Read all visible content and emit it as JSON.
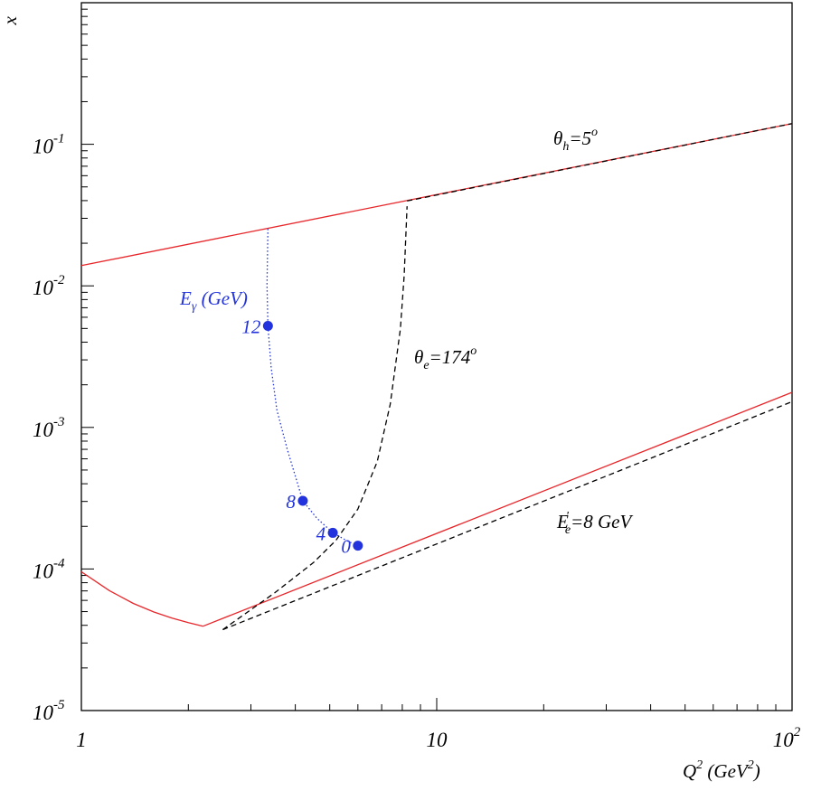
{
  "chart_data": {
    "type": "line",
    "x_scale": "log",
    "y_scale": "log",
    "xlim": [
      1,
      100
    ],
    "ylim": [
      1e-05,
      1
    ],
    "xlabel": {
      "main": "Q",
      "sup": "2",
      "unit_open": " (GeV",
      "unit_sup": "2",
      "unit_close": ")"
    },
    "ylabel": "x",
    "x_ticks": [
      {
        "value": 1,
        "text": "1"
      },
      {
        "value": 10,
        "text": "10"
      },
      {
        "value": 100,
        "base": "10",
        "exp": "2"
      }
    ],
    "y_ticks": [
      {
        "value": 0.1,
        "base": "10",
        "exp": "-1"
      },
      {
        "value": 0.01,
        "base": "10",
        "exp": "-2"
      },
      {
        "value": 0.001,
        "base": "10",
        "exp": "-3"
      },
      {
        "value": 0.0001,
        "base": "10",
        "exp": "-4"
      },
      {
        "value": 1e-05,
        "base": "10",
        "exp": "-5"
      }
    ],
    "series": [
      {
        "color": "#e8262a",
        "style": "solid",
        "x": [
          1,
          100
        ],
        "y": [
          0.0139,
          0.14
        ]
      },
      {
        "color": "#e8262a",
        "style": "solid",
        "x": [
          1,
          1.2,
          1.4,
          1.6,
          1.8,
          2.0,
          2.2
        ],
        "y": [
          9.55e-05,
          7.03e-05,
          5.71e-05,
          4.97e-05,
          4.5e-05,
          4.18e-05,
          3.94e-05
        ]
      },
      {
        "color": "#e8262a",
        "style": "solid",
        "x": [
          2.2,
          100
        ],
        "y": [
          3.94e-05,
          0.00177
        ]
      },
      {
        "color": "#000000",
        "style": "dashed",
        "x": [
          2.5,
          100
        ],
        "y": [
          3.73e-05,
          0.00152
        ]
      },
      {
        "color": "#000000",
        "style": "dashed",
        "x": [
          2.5,
          3.5,
          4.5,
          5.2,
          6.0,
          6.8,
          7.4,
          7.9,
          8.1,
          8.25
        ],
        "y": [
          3.73e-05,
          6.78e-05,
          0.000111,
          0.000159,
          0.000265,
          0.000573,
          0.00146,
          0.00495,
          0.0118,
          0.0365
        ]
      },
      {
        "color": "#000000",
        "style": "dashed",
        "x": [
          8.25,
          100
        ],
        "y": [
          0.0398,
          0.14
        ]
      },
      {
        "color": "#2233dd",
        "style": "dotted",
        "x": [
          3.35,
          3.33,
          3.35,
          3.42,
          3.55,
          3.8,
          4.2,
          4.6,
          5.1,
          5.6,
          6.0
        ],
        "y": [
          0.0253,
          0.0102,
          0.00521,
          0.00265,
          0.00133,
          0.000692,
          0.000303,
          0.000228,
          0.00018,
          0.000158,
          0.000146
        ]
      }
    ],
    "points": [
      {
        "label": "12",
        "x": 3.35,
        "y": 0.00521
      },
      {
        "label": "8",
        "x": 4.2,
        "y": 0.000303
      },
      {
        "label": "4",
        "x": 5.1,
        "y": 0.00018
      },
      {
        "label": "0",
        "x": 6.0,
        "y": 0.000146
      }
    ],
    "annotations": {
      "theta_h": {
        "sym": "θ",
        "sub": "h",
        "rest": "=5",
        "sup": "o"
      },
      "theta_e": {
        "sym": "θ",
        "sub": "e",
        "rest": "=174",
        "sup": "o"
      },
      "e_gamma": {
        "sym": "E",
        "sub": "γ",
        "rest": " (GeV)"
      },
      "e_e": {
        "sym": "E",
        "sub": "e",
        "sup": "'",
        "rest": "=8 GeV"
      }
    },
    "colors": {
      "red": "#e8262a",
      "blue": "#2233dd",
      "black": "#000000"
    }
  }
}
